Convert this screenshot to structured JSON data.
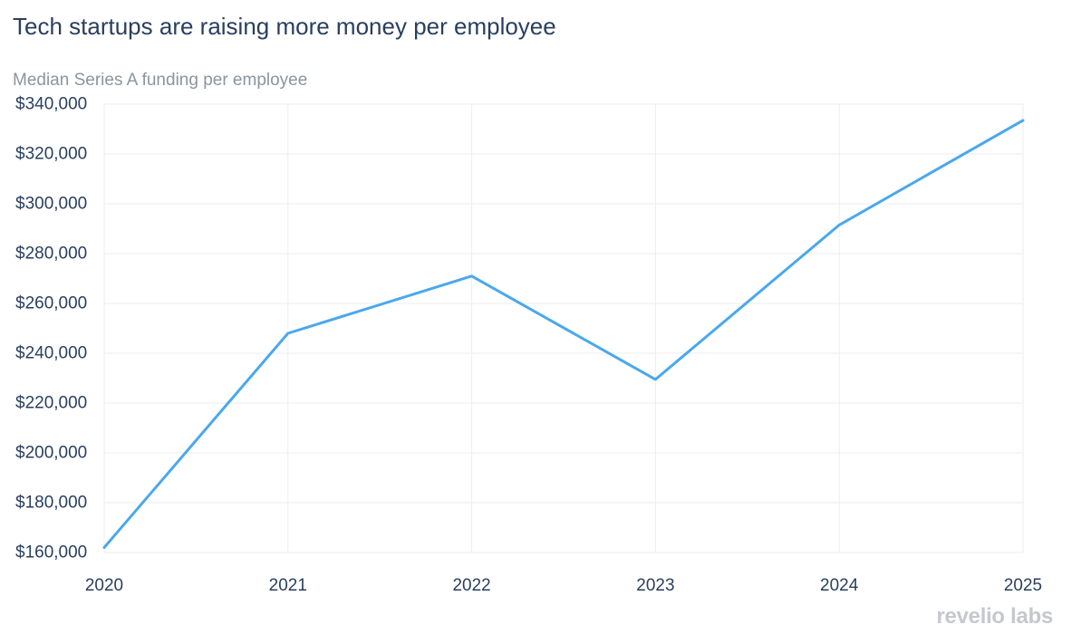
{
  "chart_data": {
    "type": "line",
    "title": "Tech startups are raising more money per employee",
    "subtitle": "Median Series A funding per employee",
    "xlabel": "",
    "ylabel": "",
    "x": [
      2020,
      2021,
      2022,
      2023,
      2024,
      2025
    ],
    "x_tick_labels": [
      "2020",
      "2021",
      "2022",
      "2023",
      "2024",
      "2025"
    ],
    "series": [
      {
        "values": [
          162000,
          248000,
          271000,
          229500,
          291500,
          333500
        ],
        "color": "#4aa8ec"
      }
    ],
    "xlim": [
      2020,
      2025
    ],
    "ylim": [
      160000,
      340000
    ],
    "y_ticks": [
      160000,
      180000,
      200000,
      220000,
      240000,
      260000,
      280000,
      300000,
      320000,
      340000
    ],
    "y_tick_labels": [
      "$160,000",
      "$180,000",
      "$200,000",
      "$220,000",
      "$240,000",
      "$260,000",
      "$280,000",
      "$300,000",
      "$320,000",
      "$340,000"
    ],
    "grid": true,
    "legend": "none"
  },
  "branding": {
    "logo_text": "revelio labs"
  },
  "colors": {
    "line": "#4aa8ec",
    "text": "#2a3f5f",
    "subtitle": "#8a959e",
    "grid": "#ebeef2",
    "logo": "#c5c8cc"
  }
}
